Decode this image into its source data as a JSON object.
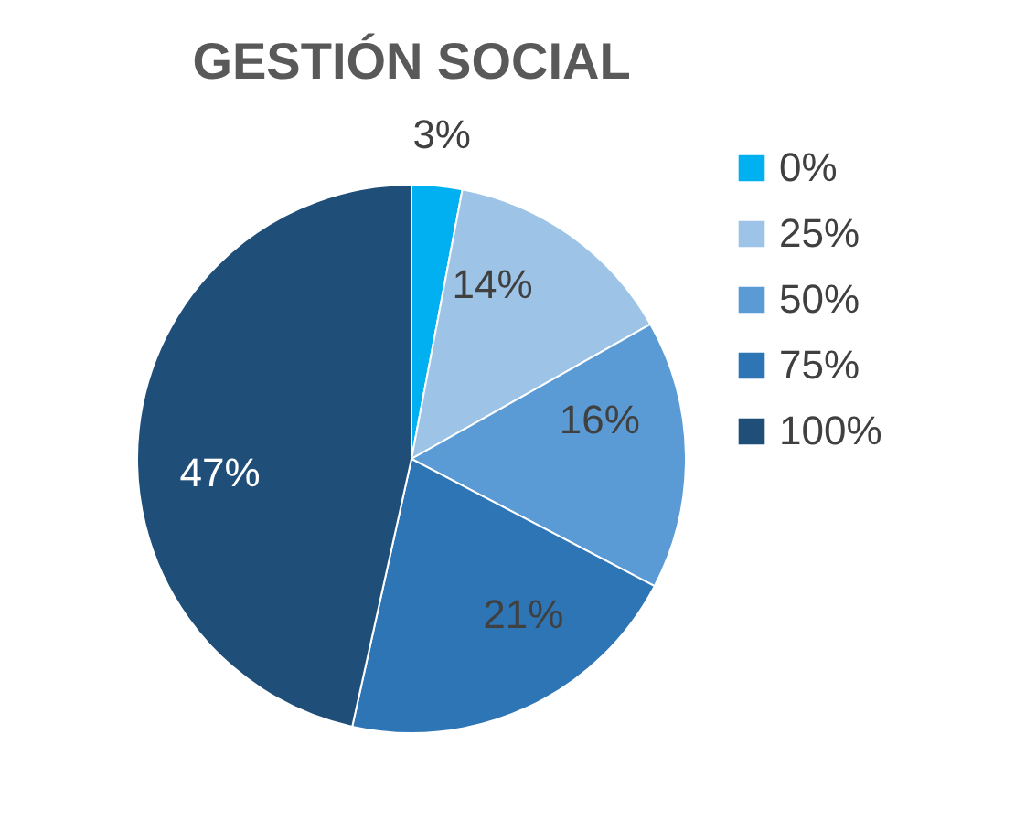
{
  "chart_data": {
    "type": "pie",
    "title": "GESTIÓN SOCIAL",
    "categories": [
      "0%",
      "25%",
      "50%",
      "75%",
      "100%"
    ],
    "values": [
      3,
      14,
      16,
      21,
      47
    ],
    "colors": [
      "#00b0f0",
      "#9dc3e6",
      "#5b9bd5",
      "#2e75b6",
      "#1f4e79"
    ],
    "value_labels": [
      "3%",
      "14%",
      "16%",
      "21%",
      "47%"
    ],
    "legend": "right"
  }
}
